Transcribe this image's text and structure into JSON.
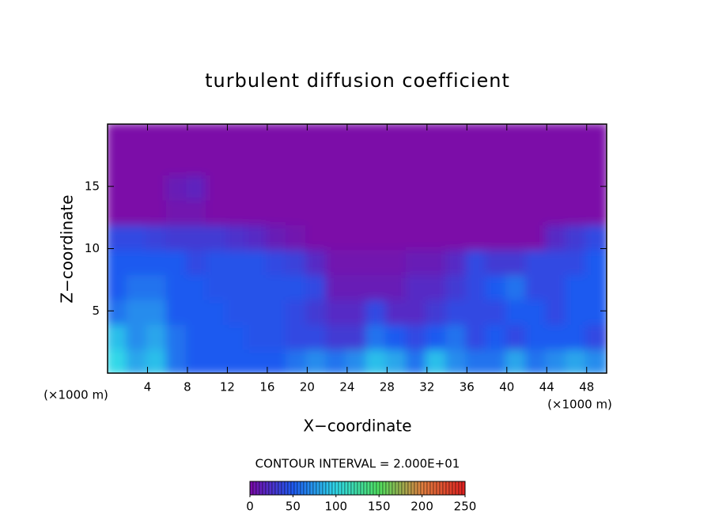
{
  "chart_data": {
    "type": "heatmap",
    "title": "turbulent diffusion coefficient",
    "x_label": "X−coordinate",
    "y_label": "Z−coordinate",
    "x_unit": "(×1000 m)",
    "y_unit": "(×1000 m)",
    "contour_interval": "CONTOUR INTERVAL = 2.000E+01",
    "xlim": [
      0,
      50
    ],
    "ylim": [
      0,
      20
    ],
    "xticks": [
      4,
      8,
      12,
      16,
      20,
      24,
      28,
      32,
      36,
      40,
      44,
      48
    ],
    "yticks": [
      5,
      10,
      15
    ],
    "x_edges": [
      0,
      2,
      4,
      6,
      8,
      10,
      12,
      14,
      16,
      18,
      20,
      22,
      24,
      26,
      28,
      30,
      32,
      34,
      36,
      38,
      40,
      42,
      44,
      46,
      48,
      50
    ],
    "y_edges": [
      0,
      2,
      4,
      6,
      8,
      10,
      12,
      14,
      16,
      18,
      20
    ],
    "z": [
      [
        100,
        80,
        90,
        60,
        50,
        50,
        50,
        50,
        50,
        60,
        70,
        60,
        70,
        90,
        80,
        60,
        90,
        70,
        60,
        60,
        80,
        60,
        70,
        80,
        70
      ],
      [
        90,
        70,
        80,
        60,
        50,
        50,
        50,
        45,
        45,
        40,
        40,
        30,
        30,
        60,
        50,
        40,
        50,
        60,
        40,
        50,
        40,
        50,
        50,
        50,
        40
      ],
      [
        60,
        70,
        70,
        50,
        50,
        50,
        45,
        45,
        45,
        40,
        30,
        20,
        20,
        40,
        20,
        20,
        30,
        40,
        40,
        40,
        50,
        50,
        40,
        50,
        50
      ],
      [
        50,
        60,
        60,
        50,
        50,
        45,
        45,
        45,
        45,
        45,
        40,
        10,
        10,
        10,
        10,
        20,
        20,
        30,
        40,
        50,
        60,
        40,
        40,
        50,
        50
      ],
      [
        50,
        50,
        50,
        50,
        40,
        45,
        45,
        45,
        40,
        35,
        20,
        5,
        5,
        5,
        5,
        10,
        10,
        20,
        40,
        30,
        30,
        40,
        40,
        40,
        50
      ],
      [
        40,
        40,
        35,
        30,
        30,
        30,
        25,
        20,
        10,
        5,
        0,
        0,
        0,
        0,
        0,
        0,
        0,
        0,
        0,
        0,
        0,
        0,
        20,
        30,
        40
      ],
      [
        0,
        0,
        0,
        5,
        5,
        0,
        0,
        0,
        0,
        0,
        0,
        0,
        0,
        0,
        0,
        0,
        0,
        0,
        0,
        0,
        0,
        0,
        0,
        0,
        0
      ],
      [
        0,
        0,
        0,
        10,
        15,
        0,
        0,
        0,
        0,
        0,
        0,
        0,
        0,
        0,
        0,
        0,
        0,
        0,
        0,
        0,
        0,
        0,
        0,
        0,
        0
      ],
      [
        0,
        0,
        0,
        0,
        0,
        0,
        0,
        0,
        0,
        0,
        0,
        0,
        0,
        0,
        0,
        0,
        0,
        0,
        0,
        0,
        0,
        0,
        0,
        0,
        0
      ],
      [
        0,
        0,
        0,
        0,
        0,
        0,
        0,
        0,
        0,
        0,
        0,
        0,
        0,
        0,
        0,
        0,
        0,
        0,
        0,
        0,
        0,
        0,
        0,
        0,
        0
      ]
    ],
    "colorbar_ticks": [
      0,
      50,
      100,
      150,
      200,
      250
    ],
    "colormap": [
      "#7b0aa8",
      "#1e5af0",
      "#30d8e8",
      "#50e060",
      "#e08040",
      "#e02020"
    ]
  }
}
